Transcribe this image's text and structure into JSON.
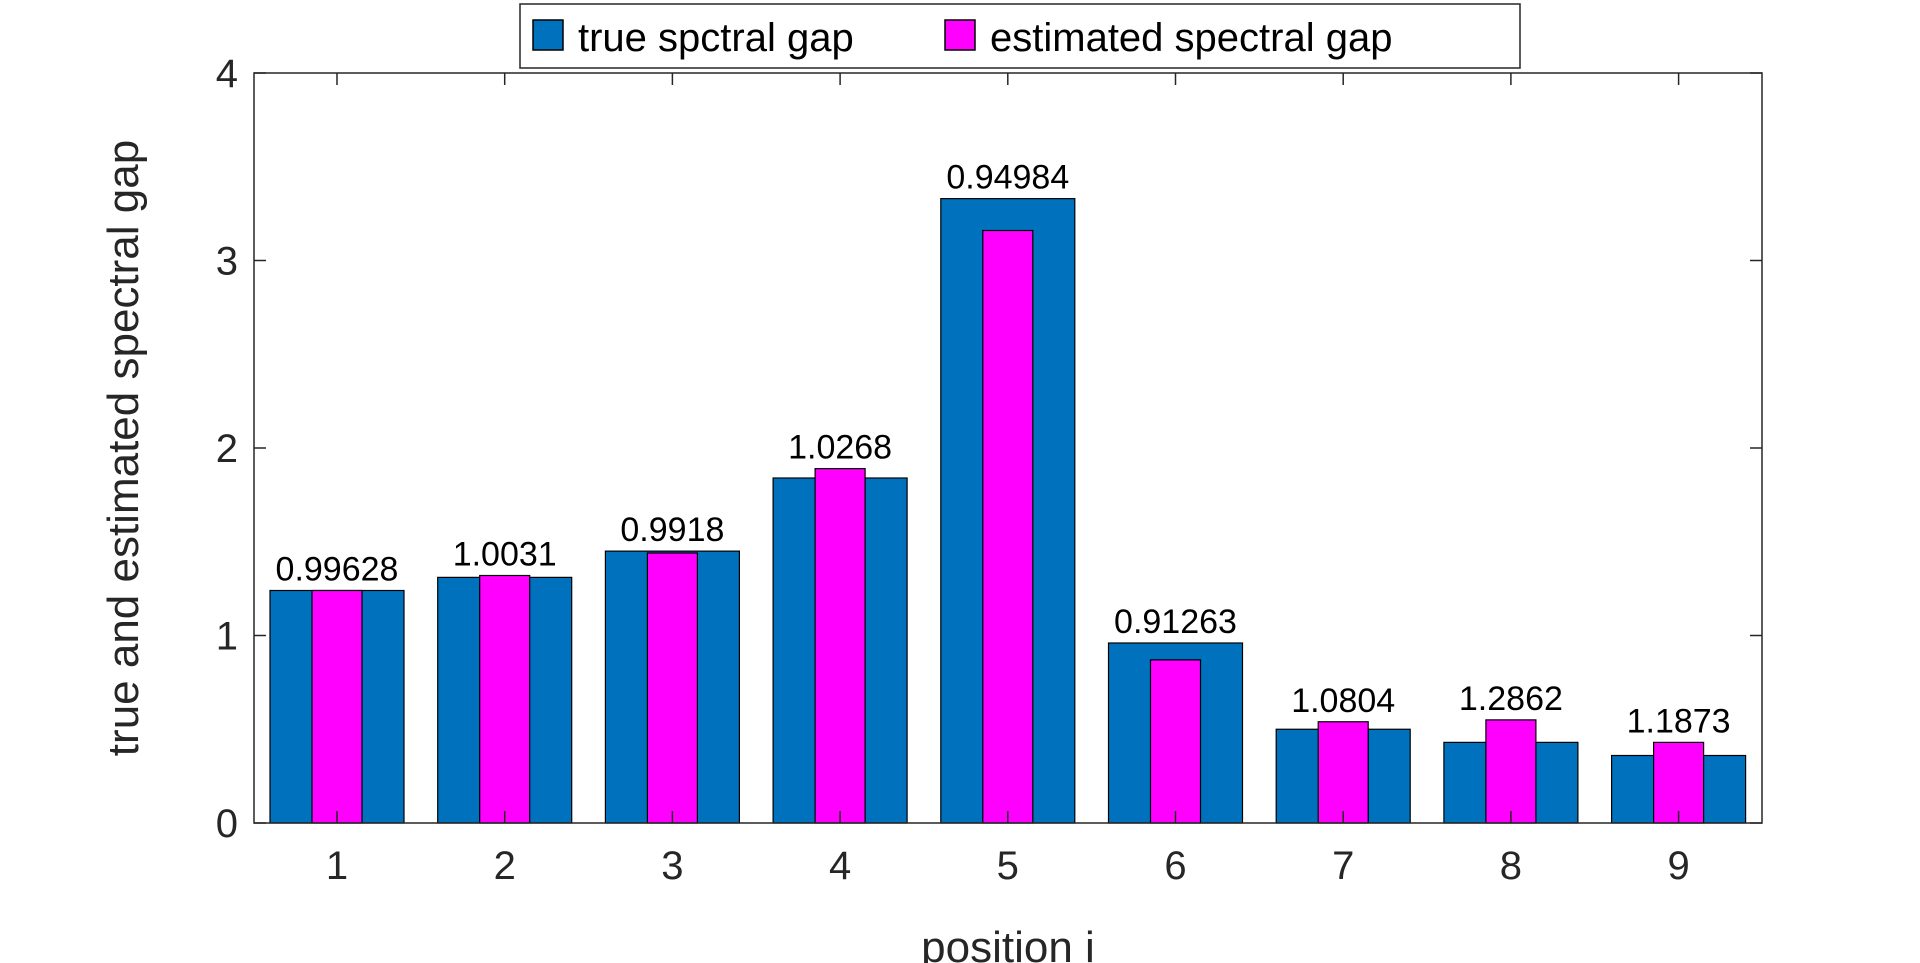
{
  "chart_data": {
    "type": "bar",
    "xlabel": "position i",
    "ylabel": "true and estimated spectral gap",
    "categories": [
      "1",
      "2",
      "3",
      "4",
      "5",
      "6",
      "7",
      "8",
      "9"
    ],
    "ylim": [
      0,
      4
    ],
    "yticks": [
      "0",
      "1",
      "2",
      "3",
      "4"
    ],
    "series": [
      {
        "name": "true spctral gap",
        "color": "#0072BD",
        "values": [
          1.24,
          1.31,
          1.45,
          1.84,
          3.33,
          0.96,
          0.5,
          0.43,
          0.36
        ]
      },
      {
        "name": "estimated spectral gap",
        "color": "#FF00FF",
        "values": [
          1.24,
          1.32,
          1.44,
          1.89,
          3.16,
          0.87,
          0.54,
          0.55,
          0.43
        ]
      }
    ],
    "data_labels": [
      "0.99628",
      "1.0031",
      "0.9918",
      "1.0268",
      "0.94984",
      "0.91263",
      "1.0804",
      "1.2862",
      "1.1873"
    ],
    "grid": false,
    "legend_position": "top"
  }
}
